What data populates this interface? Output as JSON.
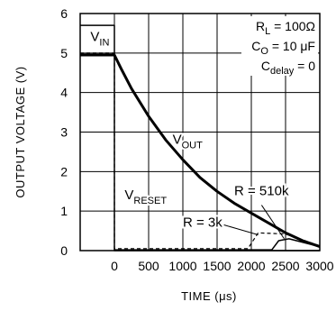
{
  "chart_data": {
    "type": "line",
    "xlabel": "TIME (μs)",
    "ylabel": "OUTPUT VOLTAGE (V)",
    "xlim": [
      -500,
      3000
    ],
    "ylim": [
      0,
      6
    ],
    "x_ticks": [
      0,
      500,
      1000,
      1500,
      2000,
      2500,
      3000
    ],
    "y_ticks": [
      0,
      1,
      2,
      3,
      4,
      5,
      6
    ],
    "grid": true,
    "legend": "top-right",
    "conditions": [
      "R_L = 100Ω",
      "C_O = 10 μF",
      "C_delay = 0"
    ],
    "series": [
      {
        "name": "V_IN",
        "style": "solid-thin",
        "x": [
          -500,
          0,
          0,
          3000
        ],
        "y": [
          5.7,
          5.7,
          0,
          0
        ]
      },
      {
        "name": "V_OUT",
        "style": "solid-thick",
        "x": [
          -500,
          0,
          100,
          250,
          500,
          750,
          1000,
          1250,
          1500,
          1750,
          2000,
          2250,
          2500,
          2750,
          3000
        ],
        "y": [
          4.95,
          4.95,
          4.6,
          4.1,
          3.4,
          2.8,
          2.3,
          1.85,
          1.5,
          1.2,
          0.95,
          0.7,
          0.45,
          0.25,
          0.1
        ]
      },
      {
        "name": "V_RESET (R = 3k)",
        "style": "dashed",
        "x": [
          -500,
          0,
          0,
          1950,
          2100,
          2500,
          3000
        ],
        "y": [
          5.0,
          5.0,
          0.05,
          0.05,
          0.45,
          0.42,
          0.12
        ]
      },
      {
        "name": "V_RESET (R = 510k)",
        "style": "solid-thin",
        "x": [
          0,
          2300,
          2400,
          2550,
          3000
        ],
        "y": [
          0.02,
          0.02,
          0.25,
          0.3,
          0.1
        ]
      }
    ],
    "annotations": [
      {
        "text": "V",
        "sub": "IN",
        "x": -350,
        "y": 5.3
      },
      {
        "text": "V",
        "sub": "OUT",
        "x": 850,
        "y": 2.7
      },
      {
        "text": "V",
        "sub": "RESET",
        "x": 150,
        "y": 1.3
      },
      {
        "text": "R = 510k",
        "x": 1750,
        "y": 1.4
      },
      {
        "text": "R = 3k",
        "x": 1000,
        "y": 0.6
      }
    ]
  }
}
